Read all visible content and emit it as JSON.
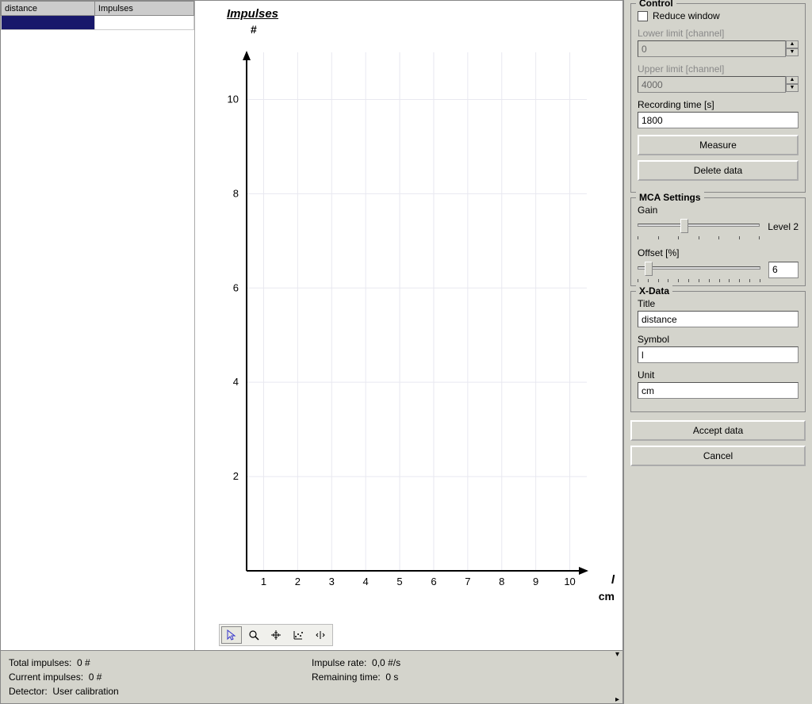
{
  "table": {
    "columns": [
      "distance",
      "Impulses"
    ],
    "rows": [
      {
        "selected": true,
        "values": [
          "",
          ""
        ]
      }
    ]
  },
  "chart": {
    "title": "Impulses",
    "y_unit": "#",
    "x_symbol": "l",
    "x_unit": "cm",
    "x_ticks": [
      1,
      2,
      3,
      4,
      5,
      6,
      7,
      8,
      9,
      10
    ],
    "y_ticks": [
      2,
      4,
      6,
      8,
      10
    ],
    "xlim": [
      0.5,
      10.5
    ],
    "ylim": [
      0,
      11
    ],
    "grid_color": "#e8e8f0",
    "axis_color": "#000000",
    "background": "#ffffff"
  },
  "toolbar": {
    "tools": [
      "pointer",
      "zoom",
      "crosshair",
      "fit",
      "split"
    ]
  },
  "status": {
    "total_impulses_label": "Total impulses:",
    "total_impulses_value": "0 #",
    "current_impulses_label": "Current impulses:",
    "current_impulses_value": "0 #",
    "detector_label": "Detector:",
    "detector_value": "User calibration",
    "impulse_rate_label": "Impulse rate:",
    "impulse_rate_value": "0,0 #/s",
    "remaining_time_label": "Remaining time:",
    "remaining_time_value": "0 s"
  },
  "control": {
    "legend": "Control",
    "reduce_window_label": "Reduce window",
    "reduce_window_checked": false,
    "lower_limit_label": "Lower limit [channel]",
    "lower_limit_value": "0",
    "upper_limit_label": "Upper limit [channel]",
    "upper_limit_value": "4000",
    "recording_time_label": "Recording time [s]",
    "recording_time_value": "1800",
    "measure_button": "Measure",
    "delete_button": "Delete data"
  },
  "mca": {
    "legend": "MCA Settings",
    "gain_label": "Gain",
    "gain_level": "Level 2",
    "gain_pos_pct": 35,
    "offset_label": "Offset [%]",
    "offset_value": "6",
    "offset_pos_pct": 6
  },
  "xdata": {
    "legend": "X-Data",
    "title_label": "Title",
    "title_value": "distance",
    "symbol_label": "Symbol",
    "symbol_value": "l",
    "unit_label": "Unit",
    "unit_value": "cm"
  },
  "accept_button": "Accept data",
  "cancel_button": "Cancel"
}
